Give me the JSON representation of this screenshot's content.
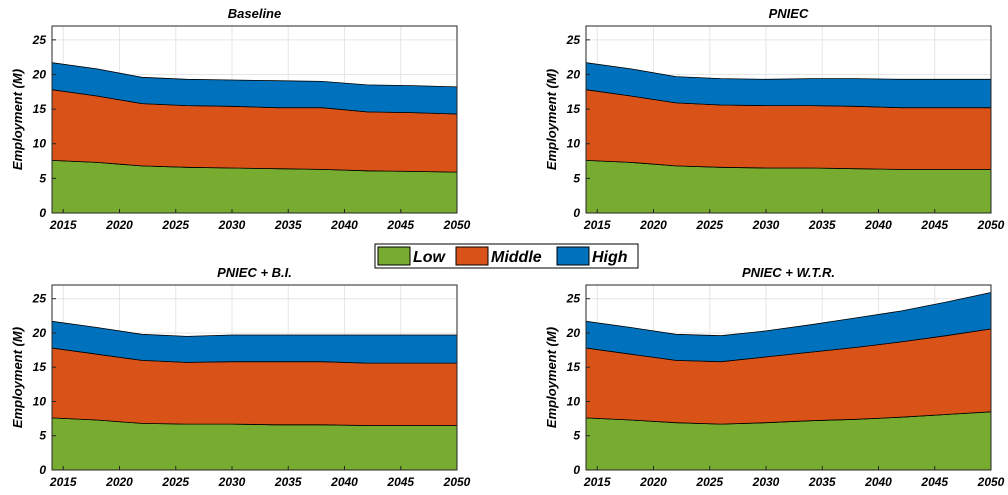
{
  "colors": {
    "low": "#77ac30",
    "middle": "#d95319",
    "high": "#0072bd"
  },
  "legend": [
    "Low",
    "Middle",
    "High"
  ],
  "chart_data": [
    {
      "type": "area",
      "stacked": true,
      "title": "Baseline",
      "ylabel": "Employment (M)",
      "xlabel": "",
      "xlim": [
        2014,
        2050
      ],
      "ylim": [
        0,
        27
      ],
      "xticks": [
        2015,
        2020,
        2025,
        2030,
        2035,
        2040,
        2045,
        2050
      ],
      "yticks": [
        0,
        5,
        10,
        15,
        20,
        25
      ],
      "grid": true,
      "x": [
        2014,
        2018,
        2022,
        2026,
        2030,
        2034,
        2038,
        2042,
        2046,
        2050
      ],
      "series": [
        {
          "name": "Low",
          "values": [
            7.6,
            7.3,
            6.8,
            6.6,
            6.5,
            6.4,
            6.3,
            6.1,
            6.0,
            5.9
          ]
        },
        {
          "name": "Middle",
          "values": [
            10.2,
            9.6,
            9.0,
            8.9,
            8.9,
            8.8,
            8.9,
            8.5,
            8.5,
            8.4
          ]
        },
        {
          "name": "High",
          "values": [
            3.9,
            3.9,
            3.8,
            3.8,
            3.8,
            3.9,
            3.8,
            3.9,
            3.9,
            3.9
          ]
        }
      ]
    },
    {
      "type": "area",
      "stacked": true,
      "title": "PNIEC",
      "ylabel": "Employment (M)",
      "xlabel": "",
      "xlim": [
        2014,
        2050
      ],
      "ylim": [
        0,
        27
      ],
      "xticks": [
        2015,
        2020,
        2025,
        2030,
        2035,
        2040,
        2045,
        2050
      ],
      "yticks": [
        0,
        5,
        10,
        15,
        20,
        25
      ],
      "grid": true,
      "x": [
        2014,
        2018,
        2022,
        2026,
        2030,
        2034,
        2038,
        2042,
        2046,
        2050
      ],
      "series": [
        {
          "name": "Low",
          "values": [
            7.6,
            7.3,
            6.8,
            6.6,
            6.5,
            6.5,
            6.4,
            6.3,
            6.3,
            6.3
          ]
        },
        {
          "name": "Middle",
          "values": [
            10.2,
            9.6,
            9.1,
            9.0,
            9.0,
            9.0,
            9.0,
            8.9,
            8.9,
            8.9
          ]
        },
        {
          "name": "High",
          "values": [
            3.9,
            3.9,
            3.8,
            3.8,
            3.8,
            3.9,
            4.0,
            4.1,
            4.1,
            4.1
          ]
        }
      ]
    },
    {
      "type": "area",
      "stacked": true,
      "title": "PNIEC + B.I.",
      "ylabel": "Employment (M)",
      "xlabel": "",
      "xlim": [
        2014,
        2050
      ],
      "ylim": [
        0,
        27
      ],
      "xticks": [
        2015,
        2020,
        2025,
        2030,
        2035,
        2040,
        2045,
        2050
      ],
      "yticks": [
        0,
        5,
        10,
        15,
        20,
        25
      ],
      "grid": true,
      "x": [
        2014,
        2018,
        2022,
        2026,
        2030,
        2034,
        2038,
        2042,
        2046,
        2050
      ],
      "series": [
        {
          "name": "Low",
          "values": [
            7.6,
            7.3,
            6.8,
            6.7,
            6.7,
            6.6,
            6.6,
            6.5,
            6.5,
            6.5
          ]
        },
        {
          "name": "Middle",
          "values": [
            10.2,
            9.6,
            9.2,
            9.0,
            9.1,
            9.2,
            9.2,
            9.1,
            9.1,
            9.1
          ]
        },
        {
          "name": "High",
          "values": [
            3.9,
            3.9,
            3.8,
            3.8,
            3.9,
            3.9,
            3.9,
            4.1,
            4.1,
            4.1
          ]
        }
      ]
    },
    {
      "type": "area",
      "stacked": true,
      "title": "PNIEC + W.T.R.",
      "ylabel": "Employment (M)",
      "xlabel": "",
      "xlim": [
        2014,
        2050
      ],
      "ylim": [
        0,
        27
      ],
      "xticks": [
        2015,
        2020,
        2025,
        2030,
        2035,
        2040,
        2045,
        2050
      ],
      "yticks": [
        0,
        5,
        10,
        15,
        20,
        25
      ],
      "grid": true,
      "x": [
        2014,
        2018,
        2022,
        2026,
        2030,
        2034,
        2038,
        2042,
        2046,
        2050
      ],
      "series": [
        {
          "name": "Low",
          "values": [
            7.6,
            7.3,
            6.9,
            6.7,
            6.9,
            7.2,
            7.4,
            7.7,
            8.1,
            8.5
          ]
        },
        {
          "name": "Middle",
          "values": [
            10.2,
            9.6,
            9.1,
            9.1,
            9.6,
            10.0,
            10.5,
            11.0,
            11.5,
            12.1
          ]
        },
        {
          "name": "High",
          "values": [
            3.9,
            3.9,
            3.8,
            3.8,
            3.8,
            4.0,
            4.3,
            4.5,
            4.9,
            5.3
          ]
        }
      ]
    }
  ]
}
